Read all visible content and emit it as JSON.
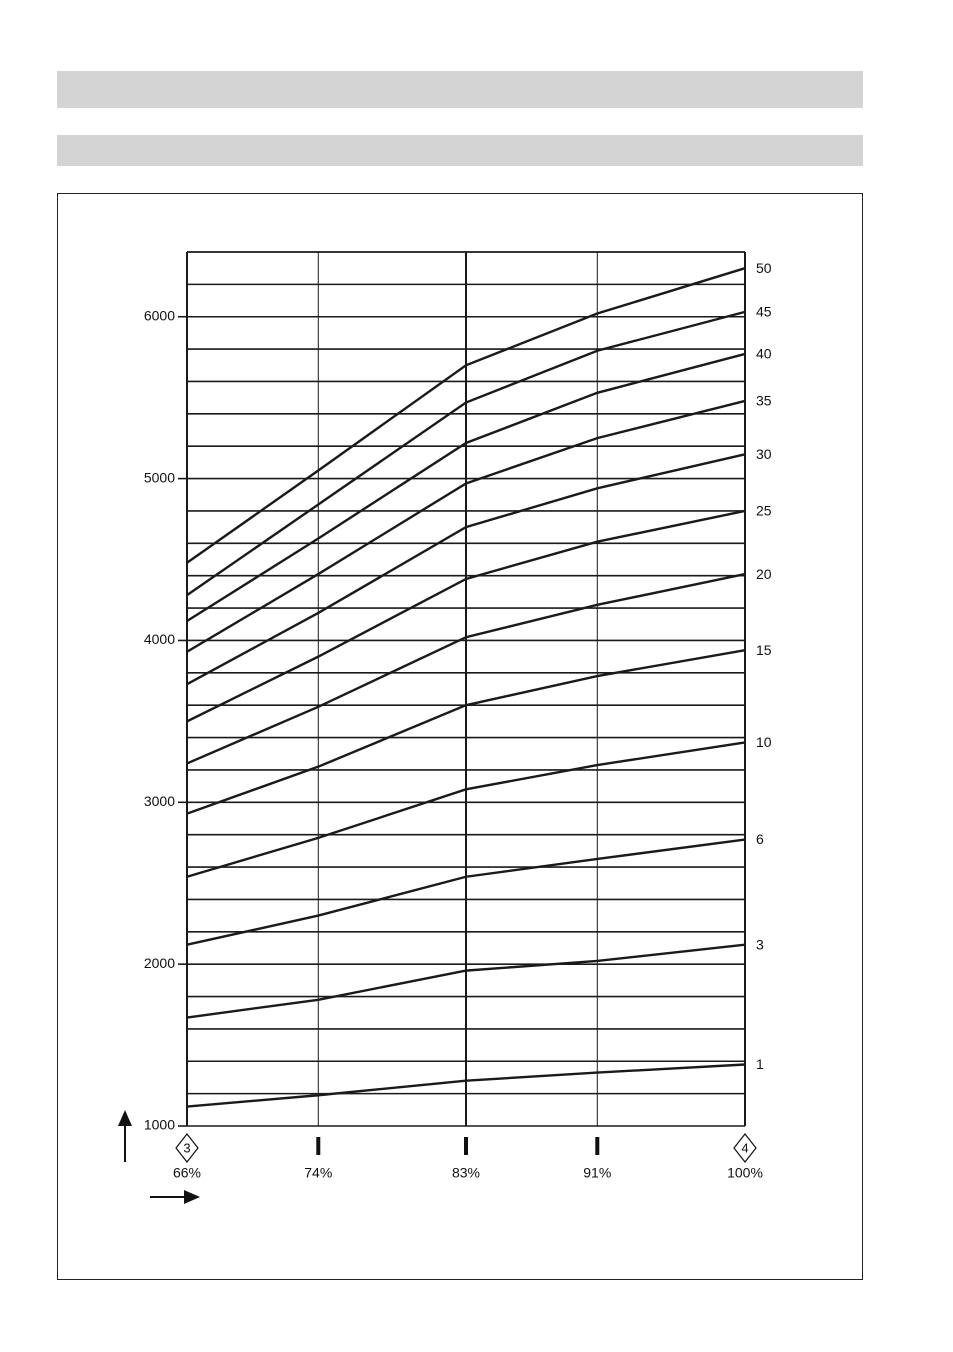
{
  "chart_data": {
    "type": "line",
    "x": [
      66,
      74,
      83,
      91,
      100
    ],
    "xlim": [
      66,
      100
    ],
    "xticks": [
      {
        "value": 66,
        "label": "66%"
      },
      {
        "value": 74,
        "label": "74%"
      },
      {
        "value": 83,
        "label": "83%"
      },
      {
        "value": 91,
        "label": "91%"
      },
      {
        "value": 100,
        "label": "100%"
      }
    ],
    "xtick_badges": [
      "3",
      null,
      null,
      null,
      "4"
    ],
    "ylim": [
      1000,
      6400
    ],
    "yticks": [
      1000,
      2000,
      3000,
      4000,
      5000,
      6000
    ],
    "ygrid": [
      1000,
      1200,
      1400,
      1600,
      1800,
      2000,
      2200,
      2400,
      2600,
      2800,
      3000,
      3200,
      3400,
      3600,
      3800,
      4000,
      4200,
      4400,
      4600,
      4800,
      5000,
      5200,
      5400,
      5600,
      5800,
      6000,
      6200,
      6400
    ],
    "color": "#1a1a1a",
    "series": [
      {
        "name": "50",
        "values": [
          4480,
          5050,
          5700,
          6020,
          6300
        ]
      },
      {
        "name": "45",
        "values": [
          4280,
          4840,
          5470,
          5790,
          6030
        ]
      },
      {
        "name": "40",
        "values": [
          4120,
          4630,
          5220,
          5530,
          5770
        ]
      },
      {
        "name": "35",
        "values": [
          3930,
          4410,
          4970,
          5250,
          5480
        ]
      },
      {
        "name": "30",
        "values": [
          3730,
          4170,
          4700,
          4940,
          5150
        ]
      },
      {
        "name": "25",
        "values": [
          3500,
          3900,
          4380,
          4610,
          4800
        ]
      },
      {
        "name": "20",
        "values": [
          3240,
          3590,
          4020,
          4220,
          4410
        ]
      },
      {
        "name": "15",
        "values": [
          2930,
          3220,
          3600,
          3780,
          3940
        ]
      },
      {
        "name": "10",
        "values": [
          2540,
          2780,
          3080,
          3230,
          3370
        ]
      },
      {
        "name": "6",
        "values": [
          2120,
          2300,
          2540,
          2650,
          2770
        ]
      },
      {
        "name": "3",
        "values": [
          1670,
          1780,
          1960,
          2020,
          2120
        ]
      },
      {
        "name": "1",
        "values": [
          1120,
          1190,
          1280,
          1330,
          1380
        ]
      }
    ]
  }
}
